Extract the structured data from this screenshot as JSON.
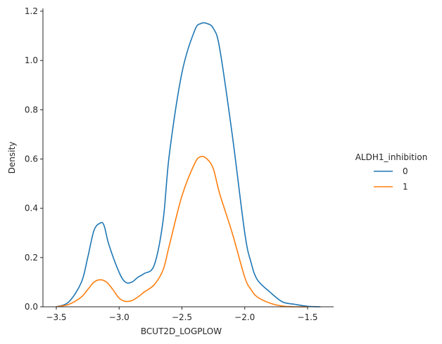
{
  "chart_data": {
    "type": "line",
    "subtype": "kde",
    "xlabel": "BCUT2D_LOGPLOW",
    "ylabel": "Density",
    "xlim": [
      -3.55,
      1.0
    ],
    "ylim": [
      0.0,
      1.2
    ],
    "xticks": [
      -3.5,
      -3.0,
      -2.5,
      -2.0,
      -1.5
    ],
    "xtick_labels": [
      "−3.5",
      "−3.0",
      "−2.5",
      "−2.0",
      "−1.5"
    ],
    "yticks": [
      0.0,
      0.2,
      0.4,
      0.6,
      0.8,
      1.0,
      1.2
    ],
    "ytick_labels": [
      "0.0",
      "0.2",
      "0.4",
      "0.6",
      "0.8",
      "1.0",
      "1.2"
    ],
    "grid": false,
    "legend": {
      "title": "ALDH1_inhibition",
      "placement": "right"
    },
    "series": [
      {
        "name": "0",
        "color": "#1f77b4",
        "x": [
          -3.5,
          -3.4,
          -3.3,
          -3.25,
          -3.2,
          -3.15,
          -3.12,
          -3.08,
          -3.0,
          -2.95,
          -2.9,
          -2.85,
          -2.8,
          -2.72,
          -2.65,
          -2.6,
          -2.5,
          -2.4,
          -2.35,
          -2.3,
          -2.25,
          -2.2,
          -2.1,
          -2.0,
          -1.95,
          -1.9,
          -1.8,
          -1.7,
          -1.6,
          -1.5,
          -1.4
        ],
        "y": [
          0.0,
          0.02,
          0.1,
          0.2,
          0.31,
          0.34,
          0.33,
          0.25,
          0.14,
          0.1,
          0.1,
          0.12,
          0.135,
          0.17,
          0.35,
          0.62,
          0.95,
          1.12,
          1.15,
          1.15,
          1.13,
          1.05,
          0.7,
          0.3,
          0.18,
          0.11,
          0.06,
          0.02,
          0.01,
          0.002,
          0.0
        ]
      },
      {
        "name": "1",
        "color": "#ff7f0e",
        "x": [
          -3.5,
          -3.4,
          -3.3,
          -3.25,
          -3.2,
          -3.15,
          -3.1,
          -3.05,
          -3.0,
          -2.95,
          -2.9,
          -2.85,
          -2.8,
          -2.72,
          -2.65,
          -2.6,
          -2.5,
          -2.4,
          -2.35,
          -2.3,
          -2.25,
          -2.2,
          -2.1,
          -2.0,
          -1.95,
          -1.9,
          -1.8,
          -1.7,
          -1.6,
          -1.5
        ],
        "y": [
          0.0,
          0.01,
          0.04,
          0.07,
          0.1,
          0.11,
          0.1,
          0.07,
          0.035,
          0.022,
          0.025,
          0.04,
          0.06,
          0.09,
          0.15,
          0.25,
          0.45,
          0.58,
          0.61,
          0.6,
          0.56,
          0.46,
          0.3,
          0.12,
          0.07,
          0.04,
          0.015,
          0.003,
          0.0,
          0.0
        ]
      }
    ]
  }
}
